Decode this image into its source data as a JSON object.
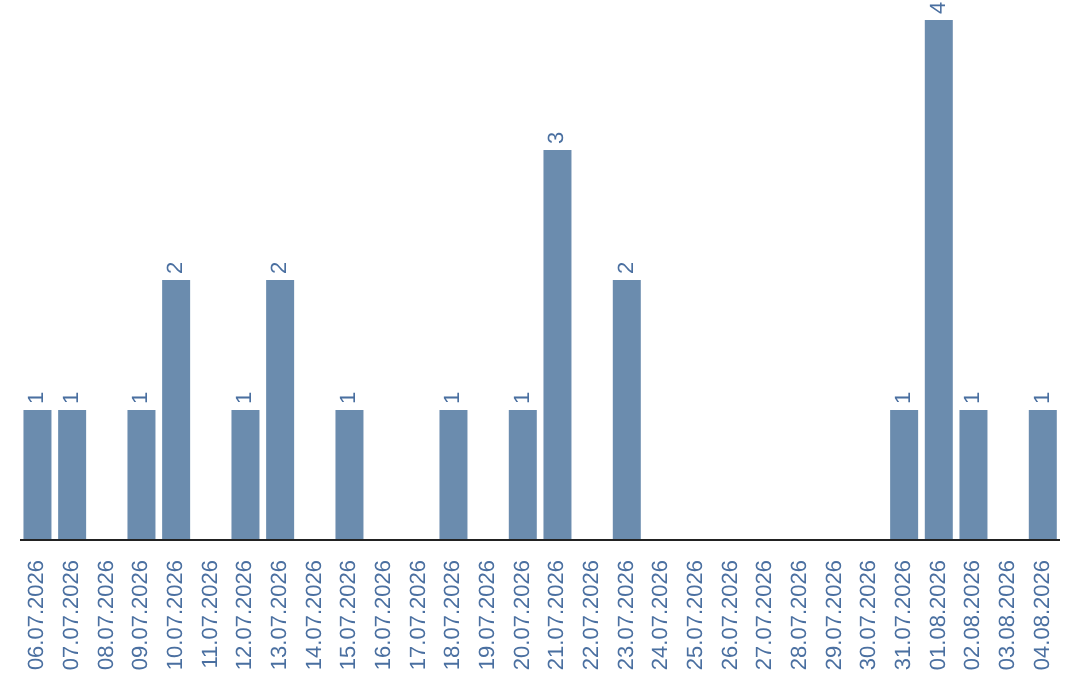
{
  "chart_data": {
    "type": "bar",
    "categories": [
      "06.07.2026",
      "07.07.2026",
      "08.07.2026",
      "09.07.2026",
      "10.07.2026",
      "11.07.2026",
      "12.07.2026",
      "13.07.2026",
      "14.07.2026",
      "15.07.2026",
      "16.07.2026",
      "17.07.2026",
      "18.07.2026",
      "19.07.2026",
      "20.07.2026",
      "21.07.2026",
      "22.07.2026",
      "23.07.2026",
      "24.07.2026",
      "25.07.2026",
      "26.07.2026",
      "27.07.2026",
      "28.07.2026",
      "29.07.2026",
      "30.07.2026",
      "31.07.2026",
      "01.08.2026",
      "02.08.2026",
      "03.08.2026",
      "04.08.2026"
    ],
    "values": [
      1,
      1,
      0,
      1,
      2,
      0,
      1,
      2,
      0,
      1,
      0,
      0,
      1,
      0,
      1,
      3,
      0,
      2,
      0,
      0,
      0,
      0,
      0,
      0,
      0,
      1,
      4,
      1,
      0,
      1
    ],
    "value_labels": [
      "1",
      "1",
      null,
      "1",
      "2",
      null,
      "1",
      "2",
      null,
      "1",
      null,
      null,
      "1",
      null,
      "1",
      "3",
      null,
      "2",
      null,
      null,
      null,
      null,
      null,
      null,
      null,
      "1",
      "4",
      "1",
      null,
      "1"
    ],
    "color": "#6b8cae",
    "tick_labels": "x"
  }
}
